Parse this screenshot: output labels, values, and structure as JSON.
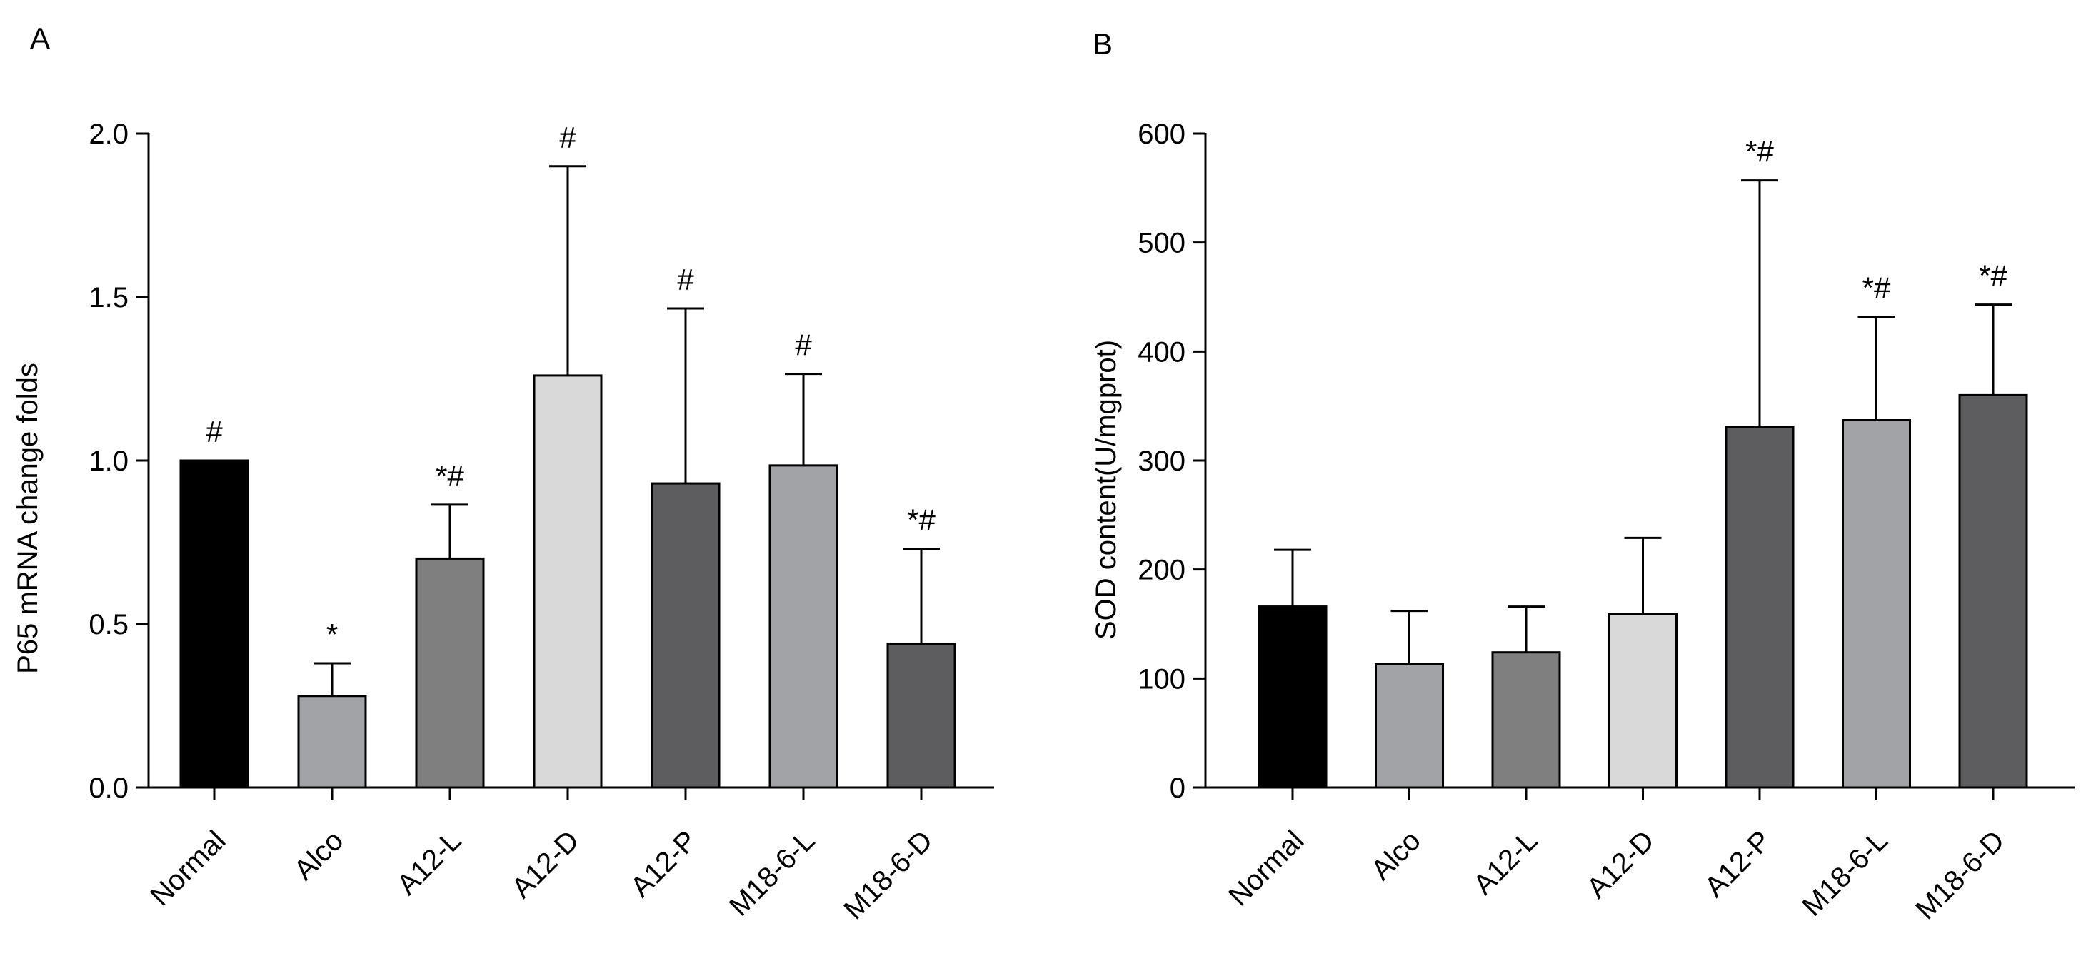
{
  "chart_data": [
    {
      "panel_label": "A",
      "type": "bar",
      "ylabel": "P65 mRNA change folds",
      "xlabel": "",
      "ylim": [
        0,
        2.0
      ],
      "yticks": [
        0.0,
        0.5,
        1.0,
        1.5,
        2.0
      ],
      "ytick_labels": [
        "0.0",
        "0.5",
        "1.0",
        "1.5",
        "2.0"
      ],
      "categories": [
        "Normal",
        "Alco",
        "A12-L",
        "A12-D",
        "A12-P",
        "M18-6-L",
        "M18-6-D"
      ],
      "values": [
        1.0,
        0.28,
        0.7,
        1.26,
        0.93,
        0.985,
        0.44
      ],
      "errors": [
        0,
        0.1,
        0.165,
        0.64,
        0.535,
        0.28,
        0.29
      ],
      "annotations": [
        "#",
        "*",
        "*#",
        "#",
        "#",
        "#",
        "*#"
      ],
      "colors": [
        "#000000",
        "#a2a3a7",
        "#7f7f7f",
        "#d9d9d9",
        "#5d5d5f",
        "#a2a3a7",
        "#5d5d5f"
      ]
    },
    {
      "panel_label": "B",
      "type": "bar",
      "ylabel": "SOD content(U/mgprot)",
      "xlabel": "",
      "ylim": [
        0,
        600
      ],
      "yticks": [
        0,
        100,
        200,
        300,
        400,
        500,
        600
      ],
      "ytick_labels": [
        "0",
        "100",
        "200",
        "300",
        "400",
        "500",
        "600"
      ],
      "categories": [
        "Normal",
        "Alco",
        "A12-L",
        "A12-D",
        "A12-P",
        "M18-6-L",
        "M18-6-D"
      ],
      "values": [
        166,
        113,
        124,
        159,
        331,
        337,
        360
      ],
      "errors": [
        52,
        49,
        42,
        70,
        226,
        95,
        83
      ],
      "annotations": [
        "",
        "",
        "",
        "",
        "*#",
        "*#",
        "*#"
      ],
      "colors": [
        "#000000",
        "#a2a3a7",
        "#7f7f7f",
        "#d9d9d9",
        "#5d5d5f",
        "#a2a3a7",
        "#5d5d5f"
      ]
    }
  ]
}
